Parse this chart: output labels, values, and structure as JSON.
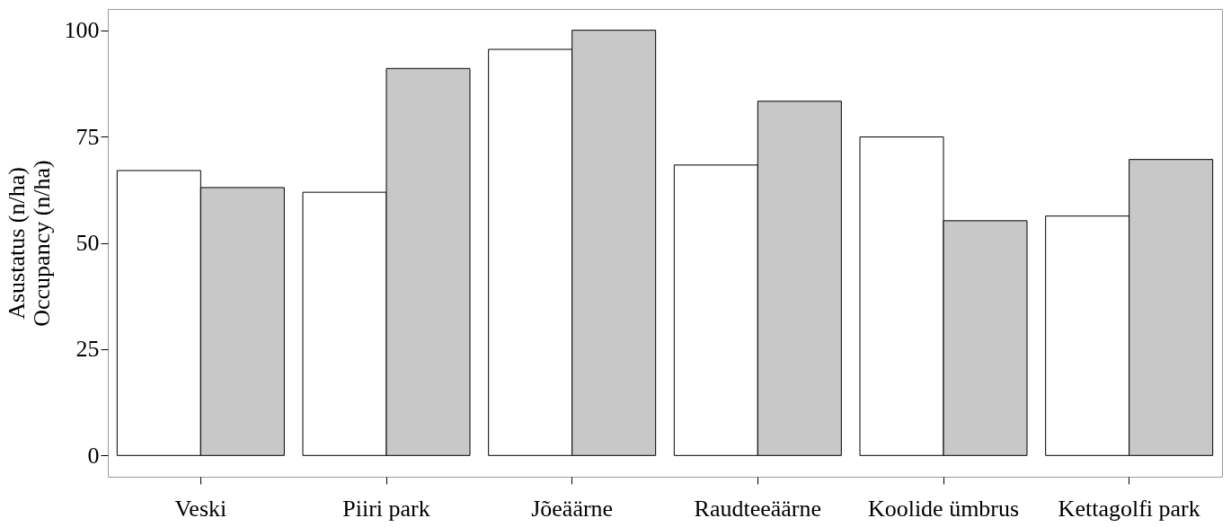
{
  "chart_data": {
    "type": "bar",
    "ylabel": "Asustatus (n/ha)\nOccupancy (n/ha)",
    "categories": [
      "Veski",
      "Piiri park",
      "Jõeäärne",
      "Raudteeäärne",
      "Koolide ümbrus",
      "Kettagolfi park"
    ],
    "series": [
      {
        "color": "#ffffff",
        "values": [
          67.0,
          61.9,
          95.5,
          68.3,
          74.9,
          56.3
        ]
      },
      {
        "color": "#c8c8c8",
        "values": [
          63.0,
          91.0,
          100,
          83.3,
          55.2,
          69.6
        ]
      }
    ],
    "ylim": [
      -5,
      105
    ],
    "yticks": [
      0,
      25,
      50,
      75,
      100
    ],
    "grid": false
  }
}
